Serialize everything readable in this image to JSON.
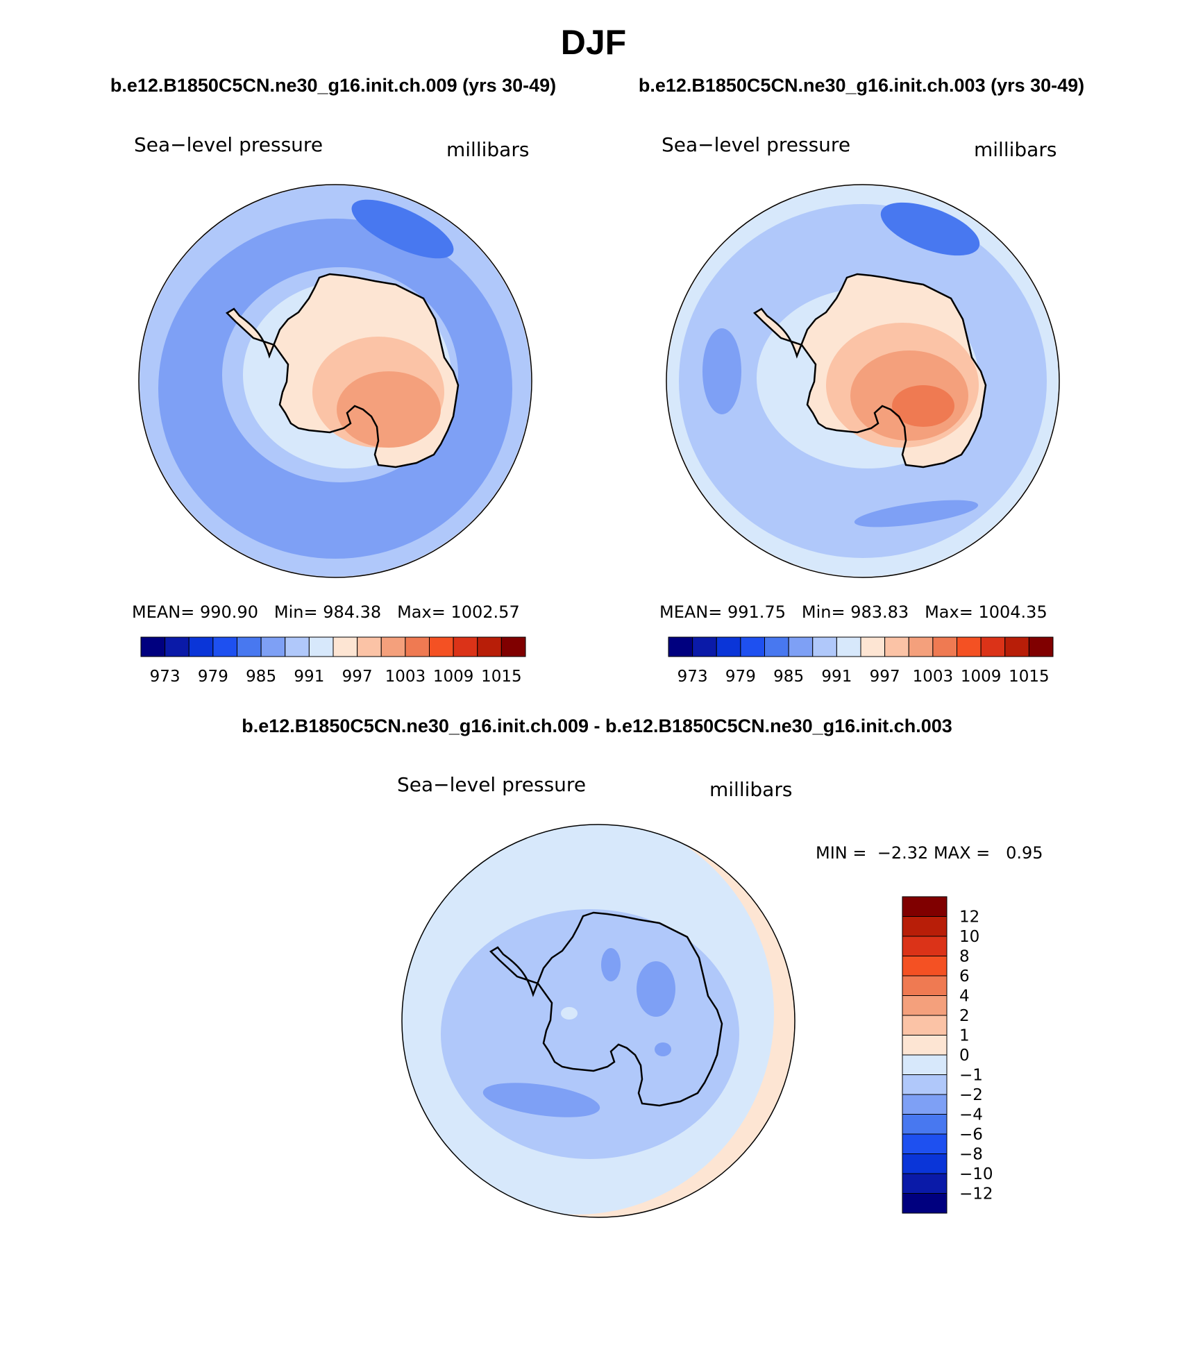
{
  "title": "DJF",
  "panel_left": {
    "case": "b.e12.B1850C5CN.ne30_g16.init.ch.009 (yrs 30-49)",
    "variable": "Sea−level pressure",
    "units": "millibars",
    "stats": {
      "mean_label": "MEAN=",
      "mean": "990.90",
      "min_label": "Min=",
      "min": "984.38",
      "max_label": "Max=",
      "max": "1002.57"
    }
  },
  "panel_right": {
    "case": "b.e12.B1850C5CN.ne30_g16.init.ch.003 (yrs 30-49)",
    "variable": "Sea−level pressure",
    "units": "millibars",
    "stats": {
      "mean_label": "MEAN=",
      "mean": "991.75",
      "min_label": "Min=",
      "min": "983.83",
      "max_label": "Max=",
      "max": "1004.35"
    }
  },
  "panel_diff": {
    "case": "b.e12.B1850C5CN.ne30_g16.init.ch.009 - b.e12.B1850C5CN.ne30_g16.init.ch.003",
    "variable": "Sea−level pressure",
    "units": "millibars",
    "min_label": "MIN =",
    "min": "−2.32",
    "max_label": "MAX =",
    "max": "0.95"
  },
  "colorbar_abs": {
    "colors": [
      "#00007f",
      "#0a1aa8",
      "#0a35d8",
      "#1e50f0",
      "#4878f0",
      "#7ea0f5",
      "#b0c8fa",
      "#d7e8fb",
      "#fde5d3",
      "#fbc3a6",
      "#f4a07c",
      "#ef7a52",
      "#f45123",
      "#db3318",
      "#b81e08",
      "#800000"
    ],
    "labels": [
      "973",
      "979",
      "985",
      "991",
      "997",
      "1003",
      "1009",
      "1015"
    ]
  },
  "colorbar_diff": {
    "colors": [
      "#800000",
      "#b81e08",
      "#db3318",
      "#f45123",
      "#ef7a52",
      "#f4a07c",
      "#fbc3a6",
      "#fde5d3",
      "#d7e8fb",
      "#b0c8fa",
      "#7ea0f5",
      "#4878f0",
      "#1e50f0",
      "#0a35d8",
      "#0a1aa8",
      "#00007f"
    ],
    "labels": [
      "12",
      "10",
      "8",
      "6",
      "4",
      "2",
      "1",
      "0",
      "−1",
      "−2",
      "−4",
      "−6",
      "−8",
      "−10",
      "−12"
    ]
  },
  "map_colors": {
    "land_outline": "#000000",
    "c_985": "#7ea0f5",
    "c_988": "#4878f0",
    "c_991": "#b0c8fa",
    "c_994": "#d7e8fb",
    "c_997": "#fde5d3",
    "c_1000": "#fbc3a6",
    "c_1003": "#f4a07c",
    "c_1006": "#ef7a52",
    "d_m4": "#7ea0f5",
    "d_m2": "#b0c8fa",
    "d_m1": "#d7e8fb",
    "d_0": "#fde5d3"
  }
}
